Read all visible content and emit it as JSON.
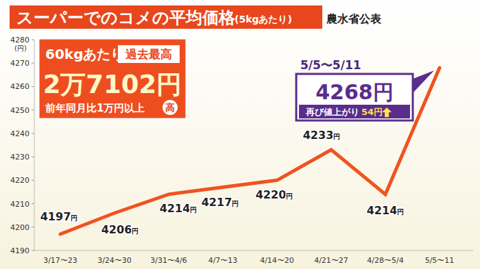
{
  "chart_data": {
    "type": "line",
    "title": "スーパーでのコメの平均価格",
    "subtitle": "(5kgあたり)",
    "source": "農水省公表",
    "y_label": "(円)",
    "categories": [
      "3/17〜23",
      "3/24〜30",
      "3/31〜4/6",
      "4/7〜13",
      "4/14〜20",
      "4/21〜27",
      "4/28〜5/4",
      "5/5〜11"
    ],
    "values": [
      4197,
      4206,
      4214,
      4217,
      4220,
      4233,
      4214,
      4268
    ],
    "value_labels": [
      "4197円",
      "4206円",
      "4214円",
      "4217円",
      "4220円",
      "4233円",
      "4214円",
      "4268円"
    ],
    "data_labels": true,
    "color": "#f0531f",
    "grid": false,
    "ylim": [
      4190,
      4280
    ],
    "yticks": [
      4190,
      4200,
      4210,
      4220,
      4230,
      4240,
      4250,
      4260,
      4270,
      4280
    ],
    "highlight": {
      "period": "5/5〜5/11",
      "note": "再び値上がり",
      "change": "54円"
    },
    "record": {
      "unit": "60kgあたり",
      "badge": "過去最高",
      "price": "2万7102円",
      "note": "前年同月比1万円以上",
      "mark": "高"
    }
  }
}
